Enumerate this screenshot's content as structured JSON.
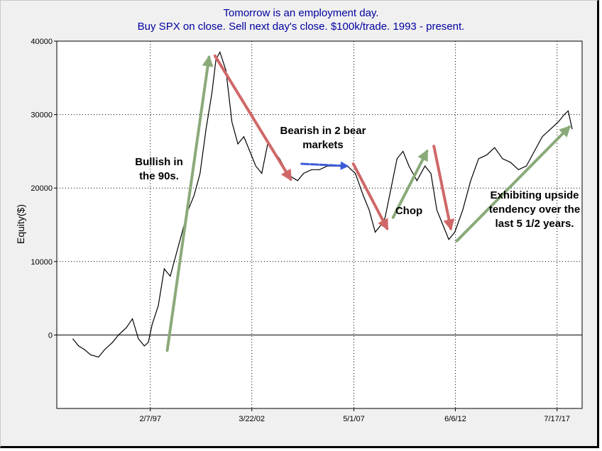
{
  "chart_data": {
    "type": "line",
    "title": "Tomorrow is an employment day.",
    "subtitle": "Buy SPX on close. Sell next day's close. $100k/trade. 1993 - present.",
    "xlabel": "",
    "ylabel": "Equity($)",
    "x_tick_labels": [
      "2/7/97",
      "3/22/02",
      "5/1/07",
      "6/6/12",
      "7/17/17"
    ],
    "x_tick_positions": [
      1997.1,
      2002.2,
      2007.33,
      2012.43,
      2017.54
    ],
    "xlim": [
      1992.4,
      2018.8
    ],
    "ylim": [
      -10000,
      40000
    ],
    "y_tick_labels": [
      "0",
      "10000",
      "20000",
      "30000",
      "40000"
    ],
    "y_tick_values": [
      0,
      10000,
      20000,
      30000,
      40000
    ],
    "grid": true,
    "series": [
      {
        "x": [
          1993.2,
          1993.5,
          1993.8,
          1994.1,
          1994.5,
          1994.8,
          1995.2,
          1995.5,
          1995.9,
          1996.2,
          1996.5,
          1996.8,
          1997.0,
          1997.2,
          1997.5,
          1997.8,
          1998.1,
          1998.4,
          1998.7,
          1999.0,
          1999.3,
          1999.6,
          1999.9,
          2000.2,
          2000.4,
          2000.6,
          2000.9,
          2001.2,
          2001.5,
          2001.8,
          2002.1,
          2002.4,
          2002.7,
          2003.0,
          2003.3,
          2003.6,
          2003.9,
          2004.2,
          2004.5,
          2004.8,
          2005.2,
          2005.6,
          2006.0,
          2006.5,
          2007.0,
          2007.4,
          2007.8,
          2008.1,
          2008.4,
          2008.7,
          2008.9,
          2009.2,
          2009.5,
          2009.8,
          2010.1,
          2010.5,
          2010.9,
          2011.2,
          2011.5,
          2011.8,
          2012.1,
          2012.4,
          2012.8,
          2013.2,
          2013.6,
          2014.0,
          2014.4,
          2014.8,
          2015.2,
          2015.6,
          2016.0,
          2016.4,
          2016.8,
          2017.2,
          2017.6,
          2017.9,
          2018.1,
          2018.3
        ],
        "values": [
          -500,
          -1500,
          -2000,
          -2700,
          -3000,
          -2000,
          -1000,
          0,
          1000,
          2200,
          -500,
          -1500,
          -1000,
          1500,
          4000,
          9000,
          8000,
          11000,
          14000,
          17000,
          19000,
          22000,
          28000,
          33000,
          37500,
          38500,
          36000,
          29000,
          26000,
          27000,
          25000,
          23000,
          22000,
          26000,
          25000,
          24000,
          22500,
          21500,
          21000,
          22000,
          22500,
          22500,
          23000,
          23000,
          23000,
          22000,
          19000,
          17000,
          14000,
          15000,
          16000,
          20000,
          24000,
          25000,
          23000,
          21000,
          23000,
          22000,
          17000,
          15000,
          13000,
          14000,
          17000,
          21000,
          24000,
          24500,
          25500,
          24000,
          23500,
          22500,
          23000,
          25000,
          27000,
          28000,
          29000,
          30000,
          30500,
          28000
        ]
      }
    ],
    "annotations": [
      {
        "text": [
          "Bullish in",
          "the 90s."
        ],
        "color": "#8aaa7a"
      },
      {
        "text": [
          "Bearish in 2 bear",
          "markets"
        ],
        "color": "#d06868"
      },
      {
        "text": [
          "Chop"
        ],
        "color": "#8aaa7a"
      },
      {
        "text": [
          "Exhibiting upside",
          "tendency over the",
          "last 5 1/2 years."
        ],
        "color": "#8aaa7a"
      }
    ],
    "colors": {
      "title": "#0000a0",
      "series": "#000000",
      "bull_arrow": "#8aaa7a",
      "bear_arrow": "#d06868",
      "flat_arrow": "#3b5bd8",
      "plot_bg": "#ffffff",
      "frame_bg": "#f0f0f0"
    }
  }
}
